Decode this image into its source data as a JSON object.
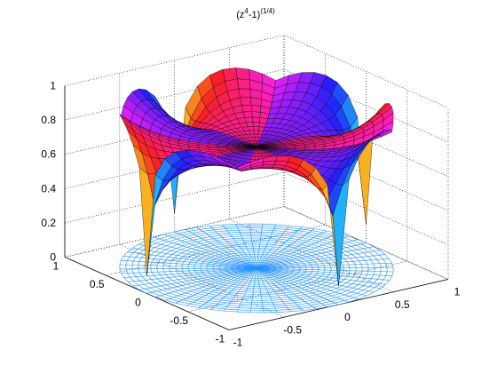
{
  "chart_data": {
    "type": "surface",
    "title": [
      {
        "text": "(z"
      },
      {
        "text": "4",
        "sup": true
      },
      {
        "text": "-1)"
      },
      {
        "text": "(1/4)",
        "sup": true
      }
    ],
    "xlim": [
      -1,
      1
    ],
    "xticks": [
      -1,
      -0.5,
      0,
      0.5,
      1
    ],
    "ylim": [
      -1,
      1
    ],
    "yticks": [
      -1,
      -0.5,
      0,
      0.5,
      1
    ],
    "zlim": [
      0,
      1
    ],
    "zticks": [
      0,
      0.2,
      0.4,
      0.6,
      0.8,
      1
    ],
    "grid": true,
    "floor_color": "#1e90ff"
  }
}
